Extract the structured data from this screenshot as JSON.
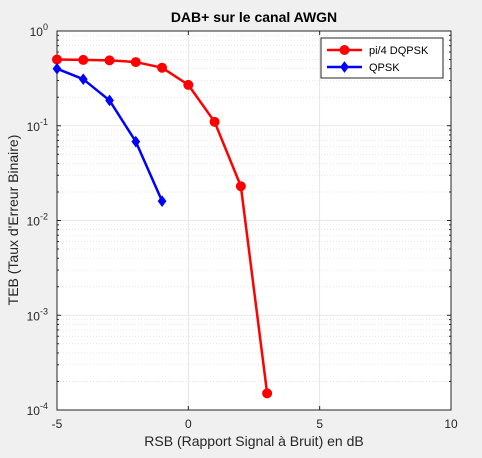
{
  "chart_data": {
    "type": "line",
    "title": "DAB+ sur le canal AWGN",
    "xlabel": "RSB (Rapport Signal à Bruit) en dB",
    "ylabel": "TEB (Taux d'Erreur Binaire)",
    "xlim": [
      -5,
      10
    ],
    "ylim": [
      0.0001,
      1
    ],
    "yscale": "log",
    "grid": true,
    "minor_grid": true,
    "legend_position": "top-right",
    "xticks": [
      -5,
      0,
      5,
      10
    ],
    "xtick_labels": [
      "-5",
      "0",
      "5",
      "10"
    ],
    "yticks": [
      0.0001,
      0.001,
      0.01,
      0.1,
      1
    ],
    "ytick_labels": [
      {
        "base": "10",
        "exp": "-4"
      },
      {
        "base": "10",
        "exp": "-3"
      },
      {
        "base": "10",
        "exp": "-2"
      },
      {
        "base": "10",
        "exp": "-1"
      },
      {
        "base": "10",
        "exp": "0"
      }
    ],
    "series": [
      {
        "name": "pi/4 DQPSK",
        "color": "#ff0000",
        "marker": "circle",
        "x": [
          -5,
          -4,
          -3,
          -2,
          -1,
          0,
          1,
          2,
          3
        ],
        "y": [
          0.5,
          0.495,
          0.49,
          0.47,
          0.41,
          0.27,
          0.11,
          0.023,
          0.00015
        ]
      },
      {
        "name": "QPSK",
        "color": "#0000ff",
        "marker": "diamond",
        "x": [
          -5,
          -4,
          -3,
          -2,
          -1
        ],
        "y": [
          0.4,
          0.31,
          0.185,
          0.068,
          0.016
        ]
      }
    ]
  }
}
